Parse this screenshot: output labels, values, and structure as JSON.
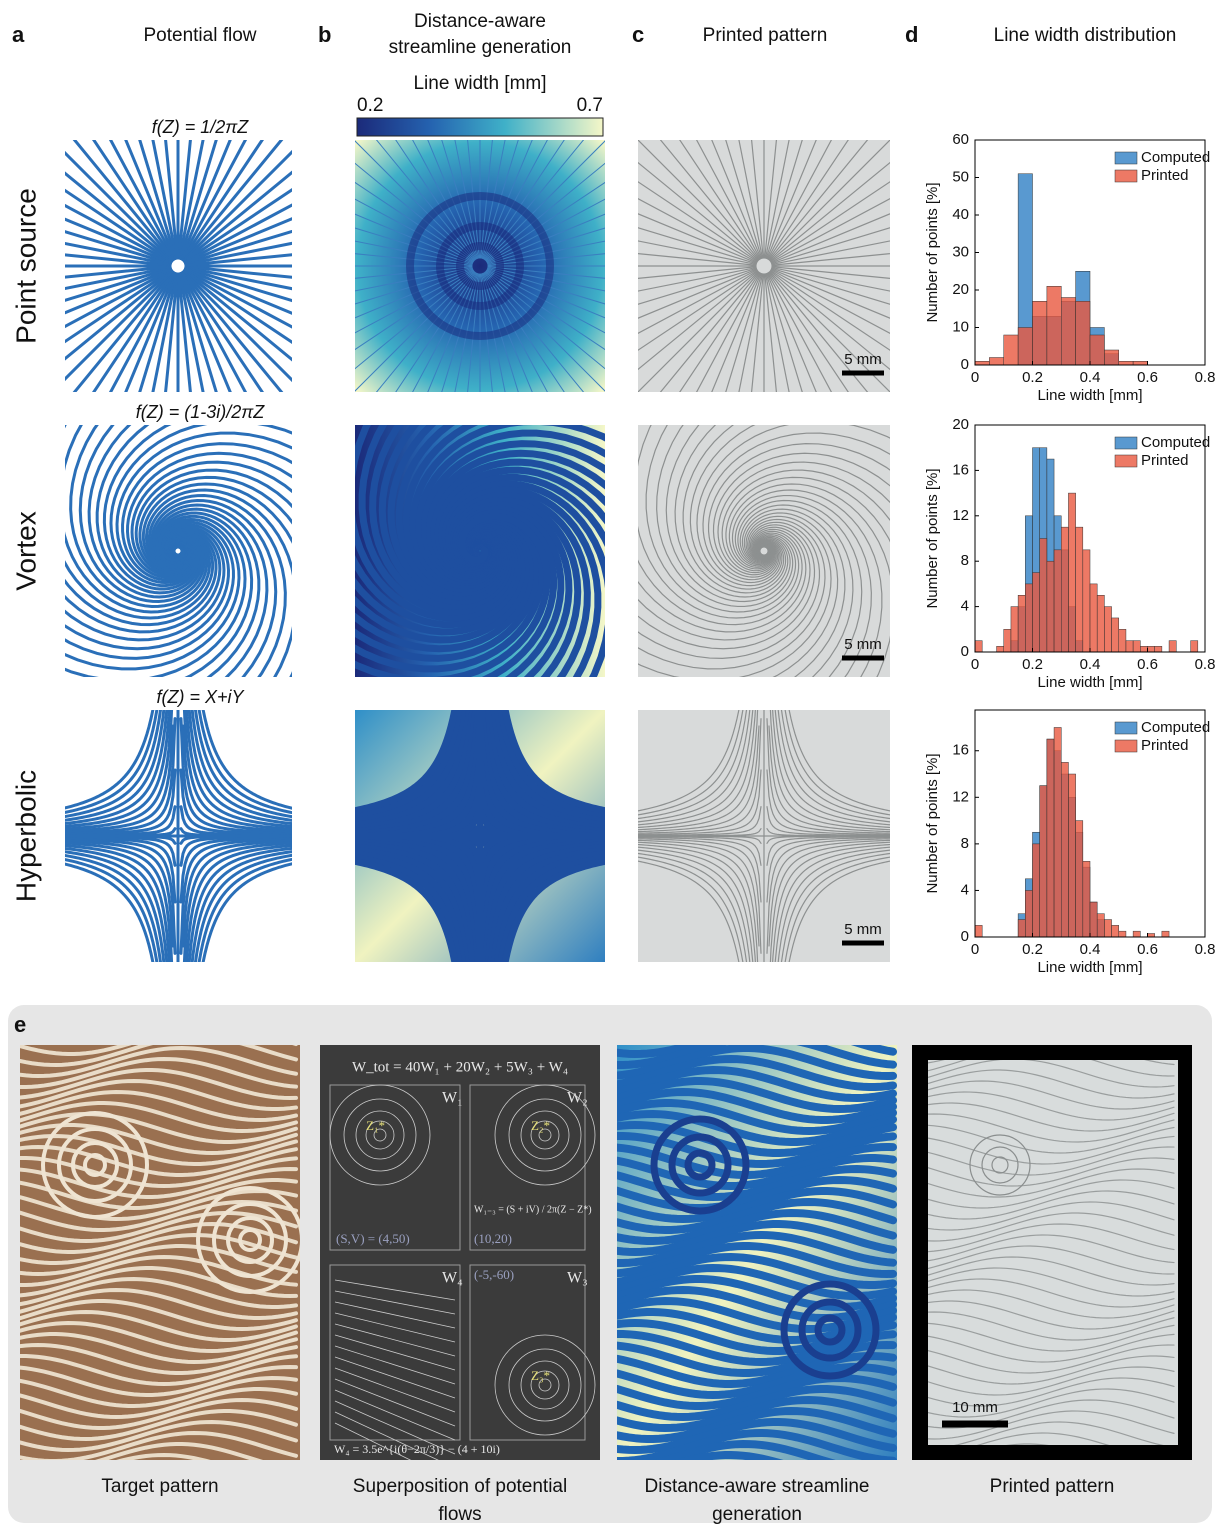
{
  "column_headers": [
    {
      "letter": "a",
      "title": [
        "Potential flow"
      ]
    },
    {
      "letter": "b",
      "title": [
        "Distance-aware",
        "streamline generation"
      ]
    },
    {
      "letter": "c",
      "title": [
        "Printed pattern"
      ]
    },
    {
      "letter": "d",
      "title": [
        "Line width distribution"
      ]
    }
  ],
  "colorbar": {
    "label": "Line width [mm]",
    "lim": [
      0.2,
      0.7
    ],
    "ticks": [
      0.2,
      0.7
    ]
  },
  "rows": [
    {
      "label": "Point source",
      "formula": "f(Z) = 1/2πZ",
      "scale_bar": "5 mm"
    },
    {
      "label": "Vortex",
      "formula": "f(Z) = (1-3i)/2πZ",
      "scale_bar": "5 mm"
    },
    {
      "label": "Hyperbolic",
      "formula": "f(Z) = X+iY",
      "scale_bar": "5 mm"
    }
  ],
  "chart_data": [
    {
      "type": "histogram",
      "xlabel": "Line width [mm]",
      "ylabel": "Number of points [%]",
      "legend": "upper right",
      "xlim": [
        0,
        0.8
      ],
      "xticks": [
        0,
        0.2,
        0.4,
        0.6,
        0.8
      ],
      "ylim": [
        0,
        60
      ],
      "yticks": [
        0,
        10,
        20,
        30,
        40,
        50,
        60
      ],
      "bins": [
        0,
        0.05,
        0.1,
        0.15,
        0.2,
        0.25,
        0.3,
        0.35,
        0.4,
        0.45,
        0.5,
        0.55,
        0.6,
        0.65
      ],
      "series": [
        {
          "name": "Computed",
          "color": "#2f80c4",
          "values": [
            0,
            0,
            0,
            51,
            13,
            13,
            17,
            25,
            10,
            3,
            0,
            0,
            0
          ]
        },
        {
          "name": "Printed",
          "color": "#e8583e",
          "values": [
            1,
            2,
            8,
            10,
            17,
            21,
            18,
            17,
            8,
            4,
            1,
            1,
            0
          ]
        }
      ]
    },
    {
      "type": "histogram",
      "xlabel": "Line width [mm]",
      "ylabel": "Number of points [%]",
      "legend": "upper right",
      "xlim": [
        0,
        0.8
      ],
      "xticks": [
        0,
        0.2,
        0.4,
        0.6,
        0.8
      ],
      "ylim": [
        0,
        20
      ],
      "yticks": [
        0,
        4,
        8,
        12,
        16,
        20
      ],
      "bins": [
        0,
        0.025,
        0.05,
        0.075,
        0.1,
        0.125,
        0.15,
        0.175,
        0.2,
        0.225,
        0.25,
        0.275,
        0.3,
        0.325,
        0.35,
        0.375,
        0.4,
        0.425,
        0.45,
        0.475,
        0.5,
        0.525,
        0.55,
        0.575,
        0.6,
        0.625,
        0.65,
        0.675,
        0.7,
        0.725,
        0.75,
        0.775,
        0.8
      ],
      "series": [
        {
          "name": "Computed",
          "color": "#2f80c4",
          "values": [
            0,
            0,
            0,
            0,
            0,
            1,
            4,
            12,
            18,
            18,
            17,
            12,
            9,
            4,
            1,
            0,
            0,
            0,
            0,
            0,
            0,
            0,
            0,
            0,
            0,
            0,
            0,
            0,
            0,
            0,
            0,
            0
          ]
        },
        {
          "name": "Printed",
          "color": "#e8583e",
          "values": [
            1,
            0,
            0,
            0.5,
            2,
            4,
            5,
            6,
            7,
            10,
            8,
            9,
            11,
            14,
            11,
            9,
            6,
            5,
            4,
            3,
            2,
            1,
            1,
            0.5,
            0.5,
            0.5,
            0,
            1,
            0,
            0,
            1,
            0
          ]
        }
      ]
    },
    {
      "type": "histogram",
      "xlabel": "Line width [mm]",
      "ylabel": "Number of points [%]",
      "legend": "upper right",
      "xlim": [
        0,
        0.8
      ],
      "xticks": [
        0,
        0.2,
        0.4,
        0.6,
        0.8
      ],
      "ylim": [
        0,
        19.5
      ],
      "yticks": [
        0,
        4,
        8,
        12,
        16
      ],
      "bins": [
        0,
        0.025,
        0.05,
        0.075,
        0.1,
        0.125,
        0.15,
        0.175,
        0.2,
        0.225,
        0.25,
        0.275,
        0.3,
        0.325,
        0.35,
        0.375,
        0.4,
        0.425,
        0.45,
        0.475,
        0.5,
        0.525,
        0.55,
        0.575,
        0.6,
        0.625,
        0.65,
        0.675,
        0.7
      ],
      "series": [
        {
          "name": "Computed",
          "color": "#2f80c4",
          "values": [
            0,
            0,
            0,
            0,
            0,
            0,
            2,
            5,
            9,
            13,
            17,
            16,
            14,
            12,
            9,
            6,
            3,
            1.5,
            0,
            0,
            0,
            0,
            0,
            0,
            0,
            0,
            0,
            0
          ]
        },
        {
          "name": "Printed",
          "color": "#e8583e",
          "values": [
            1,
            0,
            0,
            0,
            0,
            0,
            1.5,
            4,
            8,
            13,
            17,
            18,
            15,
            14,
            10,
            6.5,
            3,
            2,
            1.5,
            1,
            0.5,
            0,
            0.5,
            0,
            0.3,
            0,
            0.5,
            0
          ]
        }
      ]
    }
  ],
  "panel_e": {
    "letter": "e",
    "captions": [
      [
        "Target pattern"
      ],
      [
        "Superposition of potential",
        "flows"
      ],
      [
        "Distance-aware streamline",
        "generation"
      ],
      [
        "Printed pattern"
      ]
    ],
    "scale_bar": "10 mm",
    "superposition": {
      "equation": "W_tot = 40W₁ + 20W₂ + 5W₃ + W₄",
      "labels": [
        "W₁",
        "W₂",
        "W₄",
        "W₃"
      ],
      "params": [
        "(S,V) = (4,50)",
        "(10,20)",
        "(-5,-60)"
      ],
      "w13": "W₁₋₃ = (S + iV) / 2π(Z − Z*)",
      "w4": "W₄ = 3.5e^{i(θ−2π/3)} − (4 + 10i)",
      "points": [
        "Z₁*",
        "Z₂*",
        "Z₃*"
      ]
    }
  }
}
